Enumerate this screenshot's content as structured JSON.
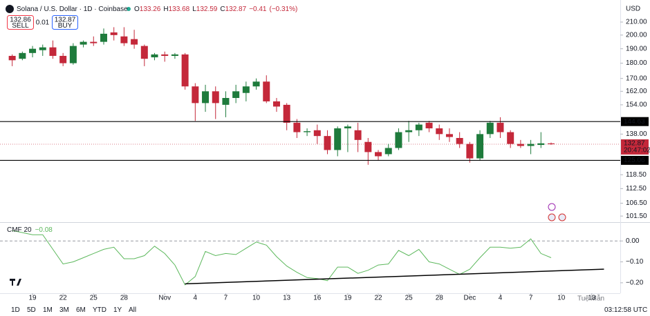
{
  "chart_data": [
    {
      "type": "candlestick",
      "title": "Solana / U.S. Dollar · 1D · Coinbase",
      "ohlc": [
        {
          "label": "O",
          "value": 133.26
        },
        {
          "label": "H",
          "value": 133.68
        },
        {
          "label": "L",
          "value": 132.59
        },
        {
          "label": "C",
          "value": 132.87
        }
      ],
      "change": "−0.41",
      "change_pct": "(−0.31%)",
      "sell": {
        "value": 132.86,
        "label": "SELL"
      },
      "spread": 0.01,
      "buy": {
        "value": 132.87,
        "label": "BUY"
      },
      "currency": "USD",
      "log_scale": true,
      "up_color": "#1e7b3c",
      "down_color": "#c4283a",
      "open": [
        185,
        183,
        187,
        189,
        191,
        185,
        180,
        193,
        195,
        195,
        202,
        199,
        197,
        192,
        184,
        186,
        185,
        186,
        165,
        155,
        162,
        154,
        158,
        161,
        165,
        168,
        156,
        154,
        144,
        139,
        140,
        137,
        130,
        141,
        140,
        134,
        129,
        128,
        131,
        139,
        140,
        144,
        141,
        138,
        136,
        133,
        126,
        138,
        144,
        139,
        133,
        132,
        132.5,
        133.26
      ],
      "high": [
        186,
        188,
        192,
        193,
        196,
        187,
        194,
        196,
        199,
        205,
        206,
        206,
        204,
        193,
        187,
        188,
        187,
        187,
        167,
        166,
        165,
        162,
        166,
        168,
        170,
        172,
        158,
        155,
        146,
        141,
        143,
        140,
        142,
        143,
        144,
        136,
        130,
        133,
        141,
        145,
        144,
        145,
        143,
        141,
        139,
        134,
        140,
        145,
        147,
        140,
        135,
        135,
        139,
        133.68
      ],
      "low": [
        178,
        182,
        184,
        185,
        183,
        178,
        179,
        191,
        192,
        193,
        196,
        192,
        190,
        178,
        182,
        181,
        183,
        163,
        145,
        150,
        146,
        147,
        155,
        156,
        163,
        155,
        150,
        140,
        136,
        137,
        133,
        128,
        127,
        129,
        129,
        123,
        125,
        127,
        130,
        134,
        137,
        139,
        135,
        134,
        131,
        124,
        125,
        136,
        136,
        131,
        131,
        128,
        131,
        132.59
      ],
      "close": [
        182,
        187,
        190,
        191,
        185,
        180,
        192,
        195,
        194,
        201,
        200,
        194,
        193,
        183,
        186,
        185,
        186,
        165,
        155,
        162,
        155,
        158,
        162,
        165,
        168,
        156,
        153,
        144,
        139,
        139.5,
        137,
        130,
        141,
        142,
        135,
        129,
        127,
        131,
        139,
        140,
        143,
        141,
        138,
        136.5,
        133,
        126,
        138,
        144,
        139,
        133,
        132,
        133,
        133.3,
        132.87
      ],
      "xlim": [
        -1.2,
        59.8
      ],
      "ylim": [
        99.2,
        228.1
      ],
      "yticks": [
        {
          "value": 210,
          "label": "210.00"
        },
        {
          "value": 200,
          "label": "200.00"
        },
        {
          "value": 190,
          "label": "190.00"
        },
        {
          "value": 180,
          "label": "180.00"
        },
        {
          "value": 170,
          "label": "170.00"
        },
        {
          "value": 162,
          "label": "162.00"
        },
        {
          "value": 154,
          "label": "154.00"
        },
        {
          "value": 138,
          "label": "138.00"
        },
        {
          "value": 118.5,
          "label": "118.50"
        },
        {
          "value": 112.5,
          "label": "112.50"
        },
        {
          "value": 106.5,
          "label": "106.50"
        },
        {
          "value": 101.5,
          "label": "101.50"
        }
      ],
      "hlines": [
        {
          "value": 144.63,
          "color": "#000000"
        },
        {
          "value": 125.06,
          "color": "#000000"
        }
      ],
      "last_price": {
        "value": 132.87,
        "countdown": "20:47:02",
        "color": "#c4283a"
      }
    },
    {
      "type": "line",
      "series": [
        {
          "name": "CMF 20",
          "color": "#5cb85c",
          "last_label": "−0.08",
          "values": [
            0.05,
            0.04,
            0.03,
            0.03,
            -0.04,
            -0.11,
            -0.1,
            -0.08,
            -0.06,
            -0.04,
            -0.03,
            -0.085,
            -0.085,
            -0.07,
            -0.025,
            -0.06,
            -0.115,
            -0.21,
            -0.17,
            -0.05,
            -0.07,
            -0.06,
            -0.065,
            -0.035,
            -0.005,
            -0.02,
            -0.075,
            -0.12,
            -0.15,
            -0.175,
            -0.18,
            -0.19,
            -0.125,
            -0.125,
            -0.155,
            -0.14,
            -0.115,
            -0.11,
            -0.045,
            -0.07,
            -0.04,
            -0.1,
            -0.11,
            -0.135,
            -0.16,
            -0.135,
            -0.08,
            -0.03,
            -0.03,
            -0.035,
            -0.03,
            0.01,
            -0.06,
            -0.08
          ]
        }
      ],
      "zero_line": true,
      "xlim": [
        -1.2,
        59.8
      ],
      "ylim": [
        -0.25,
        0.08
      ],
      "yticks": [
        {
          "value": 0,
          "label": "0.00"
        },
        {
          "value": -0.1,
          "label": "−0.10"
        },
        {
          "value": -0.2,
          "label": "−0.20"
        }
      ],
      "xticks": [
        {
          "value": 2,
          "label": "19"
        },
        {
          "value": 5,
          "label": "22"
        },
        {
          "value": 8,
          "label": "25"
        },
        {
          "value": 11,
          "label": "28"
        },
        {
          "value": 15,
          "label": "Nov"
        },
        {
          "value": 18,
          "label": "4"
        },
        {
          "value": 21,
          "label": "7"
        },
        {
          "value": 24,
          "label": "10"
        },
        {
          "value": 27,
          "label": "13"
        },
        {
          "value": 30,
          "label": "16"
        },
        {
          "value": 33,
          "label": "19"
        },
        {
          "value": 36,
          "label": "22"
        },
        {
          "value": 39,
          "label": "25"
        },
        {
          "value": 42,
          "label": "28"
        },
        {
          "value": 45,
          "label": "Dec"
        },
        {
          "value": 48,
          "label": "4"
        },
        {
          "value": 51,
          "label": "7"
        },
        {
          "value": 54,
          "label": "10"
        },
        {
          "value": 57,
          "label": "13"
        }
      ],
      "trendline": {
        "x": [
          17,
          58.2
        ],
        "y": [
          -0.205,
          -0.135
        ]
      }
    }
  ],
  "toolbar": {
    "ranges": [
      "1D",
      "5D",
      "1M",
      "3M",
      "6M",
      "YTD",
      "1Y",
      "All"
    ],
    "time": "03:12:58 UTC"
  },
  "watermark": "Tuệ Mẫn"
}
